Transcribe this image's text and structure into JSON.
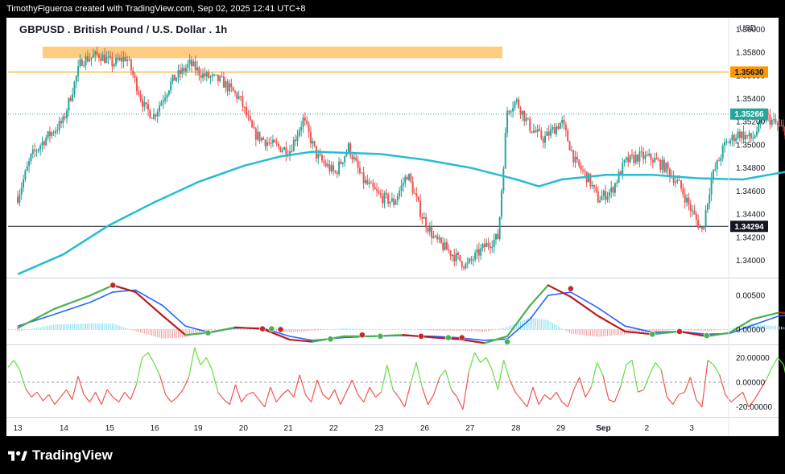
{
  "header": {
    "credit": "TimothyFigueroa created with TradingView.com, Sep 02, 2025 12:41 UTC+8"
  },
  "chart_title": "GBPUSD . British Pound / U.S. Dollar . 1h",
  "brand": {
    "name": "TradingView"
  },
  "colors": {
    "candle_up": "#26a69a",
    "candle_down": "#ef5350",
    "ma": "#26bcd3",
    "resistance_zone": "#ffcc80",
    "orange_line": "#ff9800",
    "wave_red": "#b71c1c",
    "wave_blue": "#2962ff",
    "wave_green": "#4caf50",
    "osc_green": "#66dd44",
    "osc_red": "#ef5350"
  },
  "chart_data": {
    "type": "candlestick",
    "currency": "USD",
    "x_ticks": [
      "13",
      "14",
      "15",
      "16",
      "19",
      "20",
      "21",
      "22",
      "23",
      "26",
      "27",
      "28",
      "29",
      "Sep",
      "2",
      "3"
    ],
    "price_axis": {
      "ylim": [
        1.3385,
        1.361
      ],
      "ticks": [
        "1.36000",
        "1.35800",
        "1.35600",
        "1.35400",
        "1.35200",
        "1.35000",
        "1.34800",
        "1.34600",
        "1.34400",
        "1.34200",
        "1.34000"
      ]
    },
    "price_labels": {
      "orange_level": "1.35630",
      "last_price": "1.35266",
      "black_level": "1.34294"
    },
    "levels": {
      "orange_level": 1.3563,
      "black_level": 1.34294,
      "last_price": 1.35266,
      "resistance_zone": [
        1.3575,
        1.3585
      ]
    },
    "price_path": [
      [
        0,
        1.3455
      ],
      [
        0.3,
        1.349
      ],
      [
        0.6,
        1.3505
      ],
      [
        1.0,
        1.352
      ],
      [
        1.4,
        1.3573
      ],
      [
        1.8,
        1.3578
      ],
      [
        2.1,
        1.357
      ],
      [
        2.4,
        1.3576
      ],
      [
        2.8,
        1.3532
      ],
      [
        3.0,
        1.3525
      ],
      [
        3.4,
        1.3555
      ],
      [
        3.8,
        1.357
      ],
      [
        4.1,
        1.356
      ],
      [
        4.5,
        1.3555
      ],
      [
        4.9,
        1.354
      ],
      [
        5.2,
        1.351
      ],
      [
        5.6,
        1.35
      ],
      [
        6.0,
        1.3495
      ],
      [
        6.3,
        1.3522
      ],
      [
        6.6,
        1.349
      ],
      [
        7.0,
        1.3475
      ],
      [
        7.3,
        1.3498
      ],
      [
        7.6,
        1.347
      ],
      [
        8.0,
        1.3455
      ],
      [
        8.3,
        1.345
      ],
      [
        8.6,
        1.3475
      ],
      [
        8.9,
        1.344
      ],
      [
        9.2,
        1.3418
      ],
      [
        9.6,
        1.3405
      ],
      [
        9.9,
        1.3395
      ],
      [
        10.3,
        1.3412
      ],
      [
        10.6,
        1.342
      ],
      [
        10.8,
        1.353
      ],
      [
        11.0,
        1.3538
      ],
      [
        11.3,
        1.3515
      ],
      [
        11.6,
        1.3505
      ],
      [
        12.0,
        1.352
      ],
      [
        12.3,
        1.3485
      ],
      [
        12.6,
        1.347
      ],
      [
        12.8,
        1.3453
      ],
      [
        13.1,
        1.346
      ],
      [
        13.4,
        1.3485
      ],
      [
        13.7,
        1.349
      ],
      [
        14.0,
        1.3488
      ],
      [
        14.3,
        1.348
      ],
      [
        14.6,
        1.3465
      ],
      [
        14.9,
        1.344
      ],
      [
        15.1,
        1.3425
      ],
      [
        15.3,
        1.347
      ],
      [
        15.6,
        1.35
      ],
      [
        15.9,
        1.351
      ],
      [
        16.2,
        1.3505
      ],
      [
        16.5,
        1.3525
      ],
      [
        16.8,
        1.3515
      ],
      [
        17.1,
        1.351
      ],
      [
        17.4,
        1.35
      ],
      [
        17.7,
        1.349
      ],
      [
        17.9,
        1.3465
      ],
      [
        18.1,
        1.3455
      ],
      [
        18.3,
        1.349
      ],
      [
        18.6,
        1.35
      ],
      [
        18.9,
        1.3515
      ],
      [
        19.2,
        1.352
      ],
      [
        19.5,
        1.353
      ],
      [
        19.8,
        1.3545
      ],
      [
        20.1,
        1.355
      ],
      [
        20.35,
        1.354
      ],
      [
        20.5,
        1.35266
      ]
    ],
    "ma_path": [
      [
        0,
        1.3388
      ],
      [
        1.0,
        1.3405
      ],
      [
        2.0,
        1.343
      ],
      [
        3.0,
        1.345
      ],
      [
        4.0,
        1.3468
      ],
      [
        5.0,
        1.3482
      ],
      [
        5.8,
        1.349
      ],
      [
        6.5,
        1.3494
      ],
      [
        7.3,
        1.3493
      ],
      [
        8.0,
        1.3492
      ],
      [
        9.0,
        1.3487
      ],
      [
        10.0,
        1.348
      ],
      [
        11.0,
        1.347
      ],
      [
        11.5,
        1.3464
      ],
      [
        12.0,
        1.347
      ],
      [
        13.0,
        1.3474
      ],
      [
        14.0,
        1.3474
      ],
      [
        15.0,
        1.3471
      ],
      [
        16.0,
        1.347
      ],
      [
        17.0,
        1.3477
      ],
      [
        18.0,
        1.3484
      ],
      [
        19.0,
        1.3487
      ],
      [
        20.0,
        1.3493
      ],
      [
        20.5,
        1.3497
      ]
    ],
    "wave_axis": {
      "ylim": [
        -0.0022,
        0.0075
      ],
      "ticks": [
        "0.00500",
        "0.00000"
      ]
    },
    "wave_fast": [
      [
        0,
        0.0002
      ],
      [
        0.8,
        0.003
      ],
      [
        1.6,
        0.005
      ],
      [
        2.1,
        0.0065
      ],
      [
        2.6,
        0.0055
      ],
      [
        3.2,
        0.002
      ],
      [
        3.7,
        -0.0008
      ],
      [
        4.2,
        -0.0005
      ],
      [
        4.8,
        0.0003
      ],
      [
        5.4,
        0.0001
      ],
      [
        6.0,
        -0.0015
      ],
      [
        6.5,
        -0.0018
      ],
      [
        7.2,
        -0.001
      ],
      [
        7.8,
        -0.001
      ],
      [
        8.5,
        -0.0008
      ],
      [
        9.2,
        -0.0012
      ],
      [
        9.7,
        -0.0014
      ],
      [
        10.3,
        -0.002
      ],
      [
        10.8,
        -0.001
      ],
      [
        11.3,
        0.0035
      ],
      [
        11.7,
        0.0065
      ],
      [
        12.2,
        0.0048
      ],
      [
        12.8,
        0.002
      ],
      [
        13.4,
        -0.0003
      ],
      [
        14.0,
        -0.0007
      ],
      [
        14.6,
        -0.0003
      ],
      [
        15.2,
        -0.001
      ],
      [
        15.7,
        -0.0005
      ],
      [
        16.2,
        0.0015
      ],
      [
        16.8,
        0.0025
      ],
      [
        17.3,
        0.0022
      ],
      [
        17.8,
        0.0008
      ],
      [
        18.3,
        -0.0003
      ],
      [
        18.8,
        0.0005
      ],
      [
        19.4,
        0.0015
      ],
      [
        20.0,
        0.002
      ],
      [
        20.5,
        0.0022
      ]
    ],
    "wave_slow": [
      [
        0,
        0.0005
      ],
      [
        0.8,
        0.0022
      ],
      [
        1.6,
        0.004
      ],
      [
        2.1,
        0.0055
      ],
      [
        2.6,
        0.0058
      ],
      [
        3.2,
        0.0035
      ],
      [
        3.7,
        0.0005
      ],
      [
        4.2,
        -0.0004
      ],
      [
        4.8,
        0.0002
      ],
      [
        5.4,
        0.0002
      ],
      [
        6.0,
        -0.001
      ],
      [
        6.5,
        -0.0016
      ],
      [
        7.2,
        -0.0012
      ],
      [
        7.8,
        -0.001
      ],
      [
        8.5,
        -0.0009
      ],
      [
        9.2,
        -0.001
      ],
      [
        9.7,
        -0.0012
      ],
      [
        10.3,
        -0.0016
      ],
      [
        10.8,
        -0.0014
      ],
      [
        11.3,
        0.0015
      ],
      [
        11.7,
        0.005
      ],
      [
        12.2,
        0.0055
      ],
      [
        12.8,
        0.0032
      ],
      [
        13.4,
        0.0005
      ],
      [
        14.0,
        -0.0004
      ],
      [
        14.6,
        -0.0003
      ],
      [
        15.2,
        -0.0007
      ],
      [
        15.7,
        -0.0006
      ],
      [
        16.2,
        0.0006
      ],
      [
        16.8,
        0.002
      ],
      [
        17.3,
        0.0022
      ],
      [
        17.8,
        0.0014
      ],
      [
        18.3,
        0.0002
      ],
      [
        18.8,
        0.0002
      ],
      [
        19.4,
        0.001
      ],
      [
        20.0,
        0.0017
      ],
      [
        20.5,
        0.002
      ]
    ],
    "wave_dots": [
      {
        "x": 2.1,
        "y": 0.0065,
        "color": "red"
      },
      {
        "x": 4.2,
        "y": -0.0005,
        "color": "green"
      },
      {
        "x": 5.4,
        "y": 0.0001,
        "color": "red"
      },
      {
        "x": 5.6,
        "y": 0.0001,
        "color": "green"
      },
      {
        "x": 5.8,
        "y": 0.0,
        "color": "red"
      },
      {
        "x": 6.9,
        "y": -0.0014,
        "color": "green"
      },
      {
        "x": 7.6,
        "y": -0.0008,
        "color": "red"
      },
      {
        "x": 8.0,
        "y": -0.001,
        "color": "green"
      },
      {
        "x": 8.9,
        "y": -0.001,
        "color": "red"
      },
      {
        "x": 9.5,
        "y": -0.0012,
        "color": "green"
      },
      {
        "x": 9.8,
        "y": -0.0012,
        "color": "red"
      },
      {
        "x": 10.8,
        "y": -0.0018,
        "color": "green"
      },
      {
        "x": 12.2,
        "y": 0.006,
        "color": "red"
      },
      {
        "x": 14.0,
        "y": -0.0007,
        "color": "green"
      },
      {
        "x": 14.6,
        "y": -0.0003,
        "color": "red"
      },
      {
        "x": 15.2,
        "y": -0.0009,
        "color": "green"
      },
      {
        "x": 17.3,
        "y": 0.0025,
        "color": "red"
      },
      {
        "x": 18.4,
        "y": -0.0004,
        "color": "green"
      },
      {
        "x": 20.5,
        "y": 0.0025,
        "color": "red"
      }
    ],
    "osc_axis": {
      "ylim": [
        -28,
        30
      ],
      "ticks": [
        "20.00000",
        "0.00000",
        "-20.00000"
      ]
    },
    "osc_values": [
      12,
      18,
      10,
      -5,
      -12,
      -8,
      -15,
      -10,
      -18,
      -12,
      -6,
      -14,
      5,
      -10,
      -16,
      -8,
      -18,
      -6,
      -12,
      -16,
      -8,
      -14,
      -2,
      20,
      24,
      16,
      6,
      -10,
      -16,
      -12,
      -6,
      4,
      28,
      14,
      20,
      10,
      -8,
      -14,
      -18,
      -2,
      -16,
      -10,
      -8,
      -14,
      -20,
      -4,
      -16,
      -10,
      -6,
      -12,
      6,
      -10,
      -16,
      2,
      -10,
      -14,
      -6,
      -18,
      -8,
      2,
      -10,
      -16,
      -4,
      -12,
      -8,
      14,
      -6,
      -12,
      -20,
      -2,
      16,
      -4,
      -18,
      -10,
      4,
      10,
      -6,
      -12,
      -22,
      8,
      24,
      16,
      20,
      10,
      -6,
      18,
      2,
      -8,
      -14,
      -20,
      -4,
      -18,
      -10,
      -14,
      -8,
      -16,
      -20,
      -6,
      4,
      -12,
      -4,
      16,
      6,
      -14,
      -16,
      -4,
      14,
      18,
      -8,
      -6,
      6,
      16,
      10,
      -12,
      -18,
      -10,
      -8,
      4,
      -14,
      -20,
      18,
      14,
      6,
      -10,
      -16,
      -12,
      -8,
      -20,
      -14,
      -6,
      2,
      12,
      20,
      14,
      -8,
      -14,
      -18,
      -4,
      -16,
      -20,
      -6,
      10,
      -12,
      -20,
      -24,
      -10,
      16,
      18,
      4,
      -14,
      8,
      -12,
      -16,
      14,
      12,
      6,
      -2,
      10,
      -10,
      -18,
      -14,
      -22
    ]
  }
}
